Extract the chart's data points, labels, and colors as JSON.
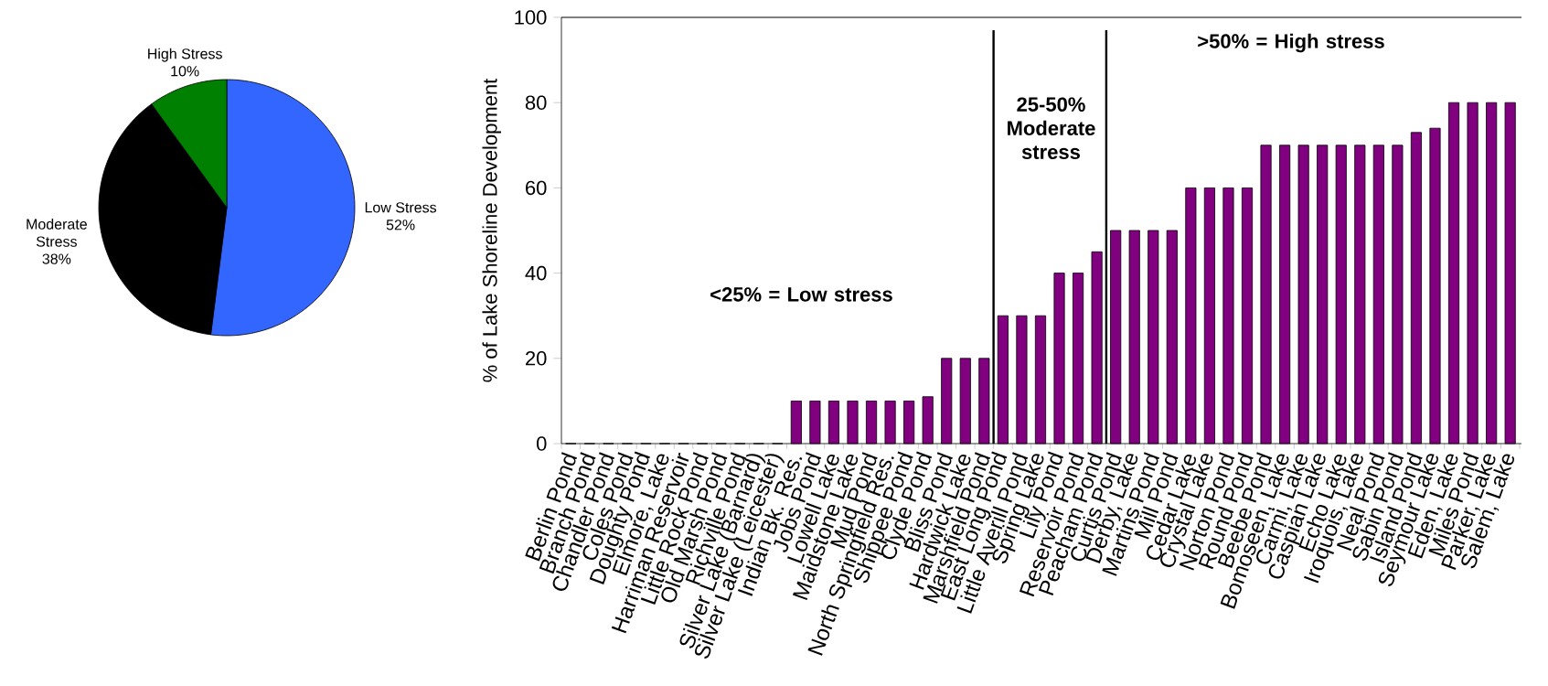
{
  "chart_data": [
    {
      "type": "pie",
      "categories": [
        "Low Stress",
        "Moderate Stress",
        "High Stress"
      ],
      "values": [
        52,
        38,
        10
      ],
      "colors": [
        "#3366ff",
        "#000000",
        "#008000"
      ],
      "value_labels": [
        "52%",
        "38%",
        "10%"
      ]
    },
    {
      "type": "bar",
      "ylabel": "% of Lake Shoreline Development",
      "color": "#800080",
      "ylim": [
        0,
        100
      ],
      "yticks": [
        0,
        20,
        40,
        60,
        80,
        100
      ],
      "categories": [
        "Berlin Pond",
        "Branch Pond",
        "Chandler Pond",
        "Coles Pond",
        "Doughty Pond",
        "Elmore, Lake",
        "Harriman Reservoir",
        "Little Rock Pond",
        "Old Marsh Pond",
        "Richville Pond",
        "Silver Lake (Barnard)",
        "Silver Lake (Leicester)",
        "Indian Bk. Res.",
        "Jobs Pond",
        "Lowell Lake",
        "Maidstone Lake",
        "Mud Pond",
        "North Springfield Res.",
        "Shippee Pond",
        "Clyde Pond",
        "Bliss Pond",
        "Hardwick Lake",
        "Marshfield Pond",
        "East Long Pond",
        "Little Averill Pond",
        "Spring Lake",
        "Lily Pond",
        "Reservoir Pond",
        "Peacham Pond",
        "Curtis Pond",
        "Derby, Lake",
        "Martins Pond",
        "Mill Pond",
        "Cedar Lake",
        "Crystal Lake",
        "Norton Pond",
        "Round Pond",
        "Beebe Pond",
        "Bomoseen, Lake",
        "Carmi, Lake",
        "Caspian Lake",
        "Echo Lake",
        "Iroquois, Lake",
        "Neal Pond",
        "Sabin Pond",
        "Island Pond",
        "Seymour Lake",
        "Eden, Lake",
        "Miles Pond",
        "Parker, Lake",
        "Salem, Lake"
      ],
      "values": [
        0,
        0,
        0,
        0,
        0,
        0,
        0,
        0,
        0,
        0,
        0,
        0,
        10,
        10,
        10,
        10,
        10,
        10,
        10,
        11,
        20,
        20,
        20,
        30,
        30,
        30,
        40,
        40,
        45,
        50,
        50,
        50,
        50,
        60,
        60,
        60,
        60,
        70,
        70,
        70,
        70,
        70,
        70,
        70,
        70,
        73,
        74,
        80,
        80,
        80,
        80
      ],
      "annotations": [
        "<25% = Low stress",
        "25-50% Moderate stress",
        ">50% = High stress"
      ]
    }
  ]
}
